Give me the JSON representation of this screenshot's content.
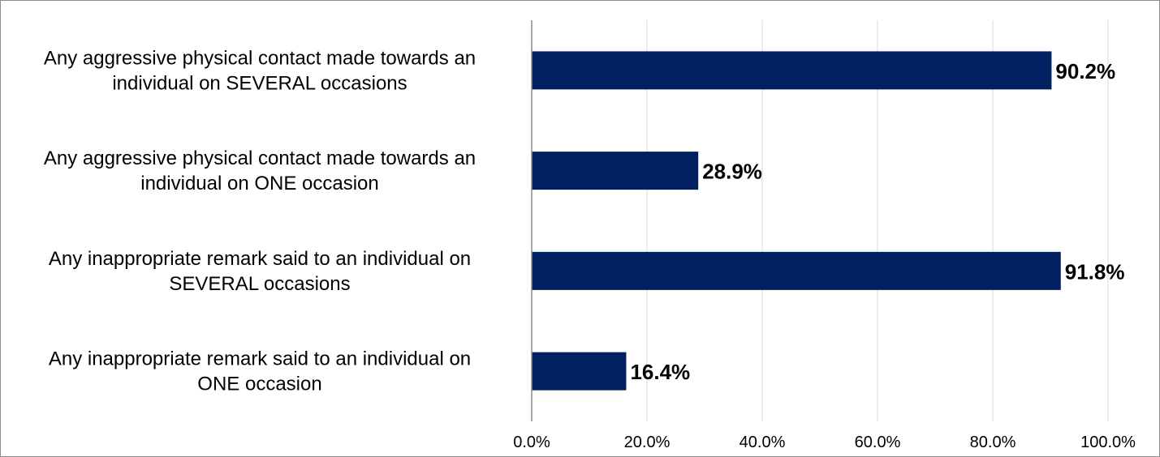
{
  "chart_data": {
    "type": "bar",
    "orientation": "horizontal",
    "title": "",
    "xlabel": "",
    "ylabel": "",
    "categories": [
      [
        "Any aggressive physical contact made towards an",
        "individual on SEVERAL occasions"
      ],
      [
        "Any aggressive physical contact made towards an",
        "individual on ONE occasion"
      ],
      [
        "Any inappropriate remark said to an individual on",
        "SEVERAL occasions"
      ],
      [
        "Any inappropriate remark said to an individual on",
        "ONE occasion"
      ]
    ],
    "values": [
      90.2,
      28.9,
      91.8,
      16.4
    ],
    "data_labels": [
      "90.2%",
      "28.9%",
      "91.8%",
      "16.4%"
    ],
    "xlim": [
      0,
      100
    ],
    "x_ticks": [
      0,
      20,
      40,
      60,
      80,
      100
    ],
    "x_tick_labels": [
      "0.0%",
      "20.0%",
      "40.0%",
      "60.0%",
      "80.0%",
      "100.0%"
    ],
    "grid": "vertical",
    "legend": "none",
    "colors": {
      "bar": "#002060",
      "grid": "#d9d9d9",
      "axis": "#8c8c8c"
    }
  }
}
